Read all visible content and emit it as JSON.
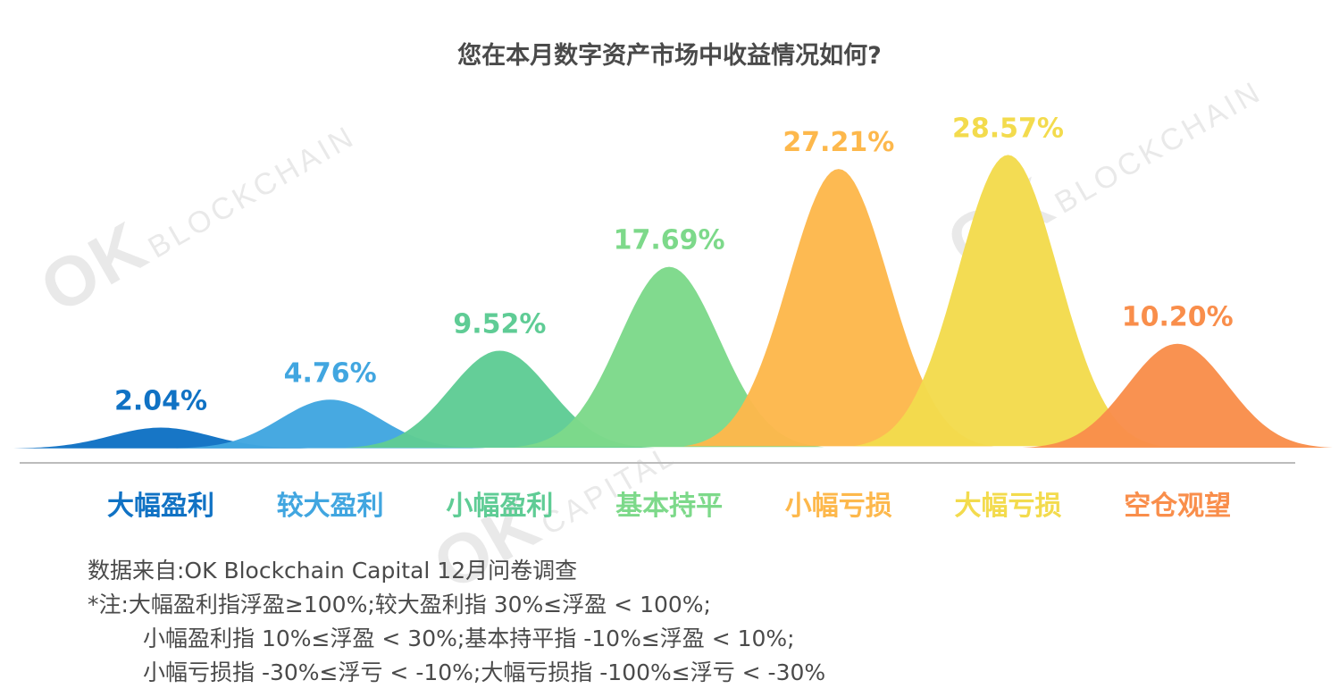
{
  "chart_data": {
    "type": "area",
    "title": "您在本月数字资产市场中收益情况如何?",
    "categories": [
      "大幅盈利",
      "较大盈利",
      "小幅盈利",
      "基本持平",
      "小幅亏损",
      "大幅亏损",
      "空仓观望"
    ],
    "values": [
      2.04,
      4.76,
      9.52,
      17.69,
      27.21,
      28.57,
      10.2
    ],
    "value_labels": [
      "2.04%",
      "4.76%",
      "9.52%",
      "17.69%",
      "27.21%",
      "28.57%",
      "10.20%"
    ],
    "colors": [
      "#1072c4",
      "#41a6e0",
      "#5fcc95",
      "#7dd98a",
      "#fdb84c",
      "#f3db4d",
      "#f98e4b"
    ],
    "ylim": [
      0,
      30
    ],
    "grid": false,
    "legend": "none"
  },
  "watermark": {
    "brand": "OK",
    "line1": "BLOCKCHAIN",
    "line2": "CAPITAL"
  },
  "notes": {
    "source": "数据来自:OK Blockchain Capital 12月问卷调查",
    "note1": "*注:大幅盈利指浮盈≥100%;较大盈利指 30%≤浮盈 < 100%;",
    "note2": "小幅盈利指 10%≤浮盈 < 30%;基本持平指 -10%≤浮盈 < 10%;",
    "note3": "小幅亏损指 -30%≤浮亏 < -10%;大幅亏损指 -100%≤浮亏 < -30%"
  }
}
